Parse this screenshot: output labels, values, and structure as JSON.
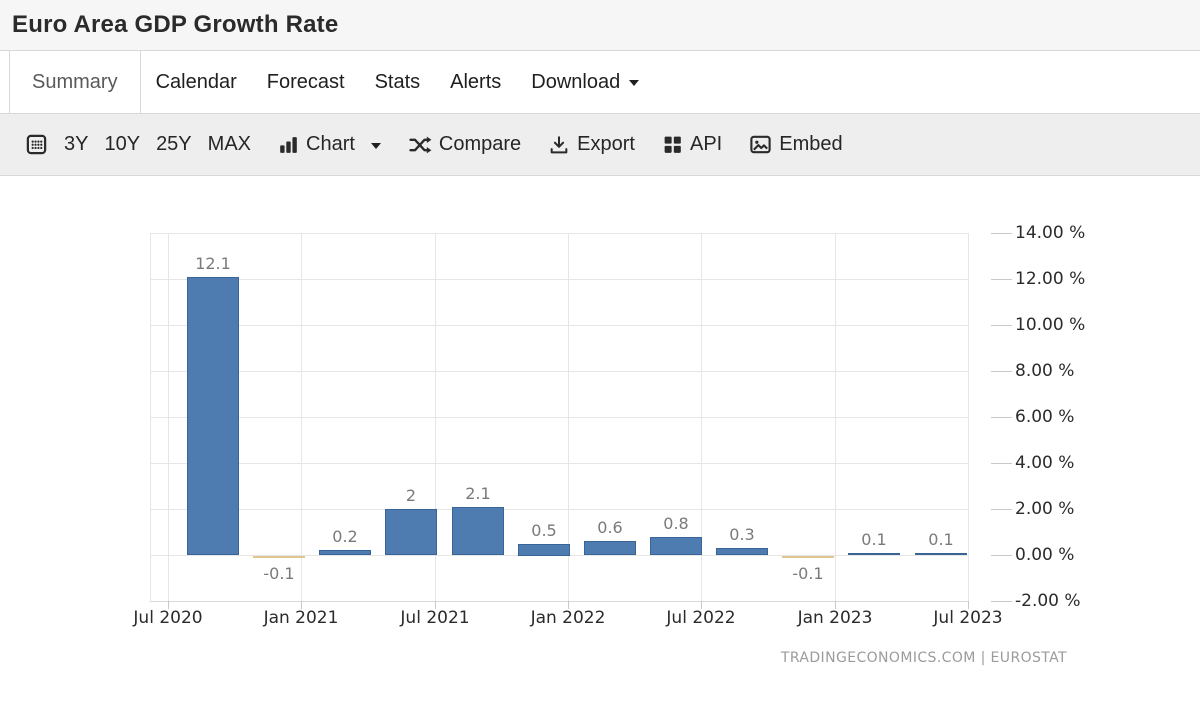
{
  "header": {
    "title": "Euro Area GDP Growth Rate"
  },
  "tabs": {
    "items": [
      {
        "label": "Summary",
        "active": true
      },
      {
        "label": "Calendar"
      },
      {
        "label": "Forecast"
      },
      {
        "label": "Stats"
      },
      {
        "label": "Alerts"
      },
      {
        "label": "Download",
        "has_caret": true
      }
    ]
  },
  "toolbar": {
    "ranges": [
      "3Y",
      "10Y",
      "25Y",
      "MAX"
    ],
    "chart_label": "Chart",
    "compare_label": "Compare",
    "export_label": "Export",
    "api_label": "API",
    "embed_label": "Embed"
  },
  "chart_data": {
    "type": "bar",
    "title": "Euro Area GDP Growth Rate",
    "unit": "%",
    "values": [
      12.1,
      -0.1,
      0.2,
      2,
      2.1,
      0.5,
      0.6,
      0.8,
      0.3,
      -0.1,
      0.1,
      0.1
    ],
    "bar_labels": [
      "12.1",
      "-0.1",
      "0.2",
      "2",
      "2.1",
      "0.5",
      "0.6",
      "0.8",
      "0.3",
      "-0.1",
      "0.1",
      "0.1"
    ],
    "x_tick_labels": [
      "Jul 2020",
      "Jan 2021",
      "Jul 2021",
      "Jan 2022",
      "Jul 2022",
      "Jan 2023",
      "Jul 2023"
    ],
    "y_tick_labels": [
      "14.00 %",
      "12.00 %",
      "10.00 %",
      "8.00 %",
      "6.00 %",
      "4.00 %",
      "2.00 %",
      "0.00 %",
      "-2.00 %"
    ],
    "y_tick_values": [
      14,
      12,
      10,
      8,
      6,
      4,
      2,
      0,
      -2
    ],
    "ylim": [
      -2,
      14
    ],
    "grid": true,
    "legend": false,
    "colors": {
      "positive_bar": "#4e7cb0",
      "negative_bar": "#f3e3bd",
      "grid_line": "#e6e6e6",
      "tick": "#c9c9c9",
      "data_label": "#7a7a7a",
      "axis_label": "#2b2b2b"
    }
  },
  "footer": {
    "attribution": "TRADINGECONOMICS.COM | EUROSTAT"
  }
}
